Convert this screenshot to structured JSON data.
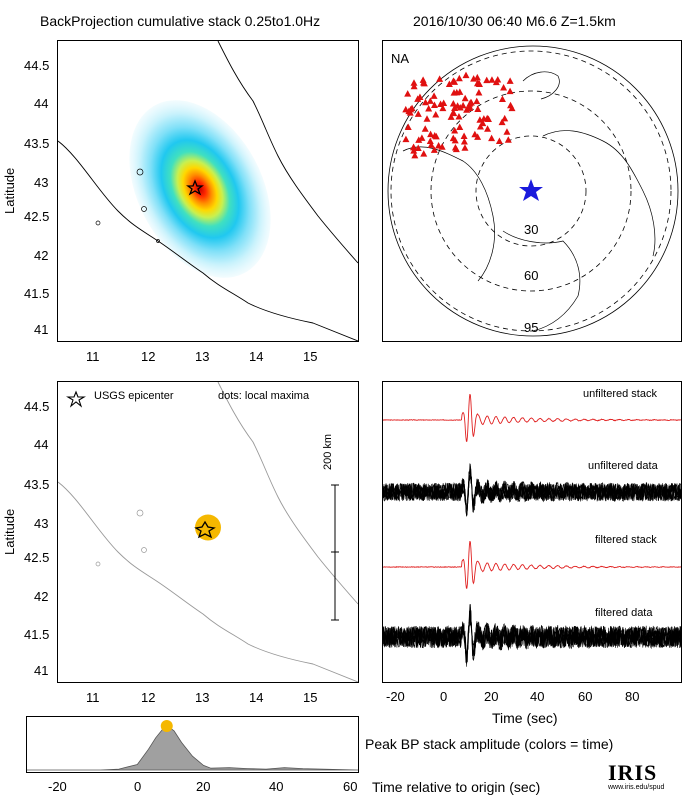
{
  "header": {
    "title": "BackProjection cumulative stack 0.25to1.0Hz",
    "event": "2016/10/30 06:40  M6.6  Z=1.5km"
  },
  "map_axes": {
    "ylabel": "Latitude",
    "lat_ticks": [
      "44.5",
      "44",
      "43.5",
      "43",
      "42.5",
      "42",
      "41.5",
      "41"
    ],
    "lon_ticks": [
      "11",
      "12",
      "13",
      "14",
      "15"
    ]
  },
  "globe": {
    "label": "NA",
    "ring_labels": [
      "30",
      "60",
      "95"
    ],
    "station_color": "#e01010",
    "epicenter_color": "#1a1adc"
  },
  "lower_map": {
    "legend_star": "USGS epicenter",
    "legend_dots": "dots: local maxima",
    "scale_label": "200 km",
    "maxima_color": "#f5b800"
  },
  "seismograms": {
    "labels": [
      "unfiltered stack",
      "unfiltered data",
      "filtered stack",
      "filtered data"
    ],
    "xlabel": "Time (sec)",
    "x_ticks": [
      "-20",
      "0",
      "20",
      "40",
      "60",
      "80"
    ],
    "stack_color": "#e02020"
  },
  "peak": {
    "caption": "Peak BP stack amplitude (colors = time)",
    "xlabel": "Time relative to origin (sec)",
    "x_ticks": [
      "-20",
      "0",
      "20",
      "40",
      "60"
    ]
  },
  "logo": {
    "name": "IRIS",
    "url": "www.iris.edu/spud"
  },
  "chart_data": [
    {
      "type": "heatmap",
      "name": "cumulative backprojection stack",
      "xlim": [
        10.4,
        15.8
      ],
      "ylim": [
        40.8,
        44.8
      ],
      "peak": {
        "lon": 13.1,
        "lat": 42.86
      },
      "epicenter": {
        "lon": 13.1,
        "lat": 42.86
      }
    },
    {
      "type": "scatter",
      "name": "local maxima",
      "points": [
        {
          "lon": 13.1,
          "lat": 42.86
        }
      ],
      "epicenter": {
        "lon": 13.1,
        "lat": 42.86
      }
    },
    {
      "type": "area",
      "name": "peak BP stack amplitude",
      "xlim": [
        -30,
        60
      ],
      "x": [
        -30,
        -10,
        -5,
        0,
        3,
        5,
        7,
        8,
        10,
        12,
        15,
        18,
        20,
        25,
        30,
        35,
        40,
        45,
        60
      ],
      "values": [
        0,
        0,
        0.02,
        0.12,
        0.45,
        0.7,
        0.9,
        0.97,
        0.85,
        0.6,
        0.3,
        0.1,
        0.04,
        0.05,
        0.03,
        0.02,
        0.05,
        0.03,
        0
      ],
      "peak_time": 8
    }
  ]
}
